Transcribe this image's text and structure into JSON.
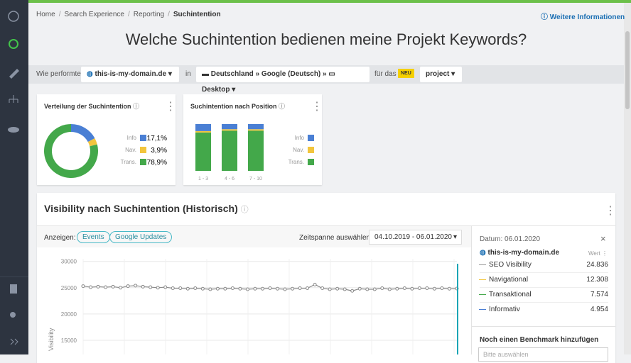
{
  "breadcrumb": [
    "Home",
    "Search Experience",
    "Reporting",
    "Suchintention"
  ],
  "info_link": "Weitere Informationen",
  "title": "Welche Suchintention bedienen meine Projekt Keywords?",
  "filter": {
    "prefix": "Wie performte",
    "domain": "this-is-my-domain.de",
    "in": "in",
    "country": "Deutschland",
    "engine": "Google (Deutsch)",
    "device": "Desktop",
    "for": "für das",
    "badge": "NEU",
    "project": "project"
  },
  "distribution": {
    "type": "pie",
    "title": "Verteilung der Suchintention",
    "categories": [
      "Info",
      "Nav.",
      "Trans."
    ],
    "values": [
      17.1,
      3.9,
      78.9
    ],
    "value_labels": [
      "17,1%",
      "3,9%",
      "78,9%"
    ],
    "colors": [
      "#4a7fd4",
      "#f2c53d",
      "#43a84a"
    ]
  },
  "position": {
    "type": "bar",
    "title": "Suchintention nach Position",
    "categories": [
      "1 - 3",
      "4 - 6",
      "7 - 10"
    ],
    "ylim": [
      0,
      100
    ],
    "series": [
      {
        "name": "Trans.",
        "color": "#43a84a",
        "values": [
          82,
          86,
          86
        ]
      },
      {
        "name": "Nav.",
        "color": "#f2c53d",
        "values": [
          3,
          3,
          3
        ]
      },
      {
        "name": "Info",
        "color": "#4a7fd4",
        "values": [
          15,
          11,
          11
        ]
      }
    ]
  },
  "visibility": {
    "title": "Visibility nach Suchintention (Historisch)",
    "show": "Anzeigen:",
    "buttons": [
      "Events",
      "Google Updates"
    ],
    "range_label": "Zeitspanne auswählen:",
    "range": "04.10.2019 - 06.01.2020",
    "chart": {
      "type": "line",
      "ylabel": "Visibility",
      "ylim": [
        12300,
        30500
      ],
      "yticks": [
        30000,
        25000,
        20000,
        15000
      ],
      "grid": true,
      "color": "#8a8a8a",
      "values": [
        25300,
        25100,
        25200,
        25100,
        25200,
        25000,
        25300,
        25400,
        25200,
        25100,
        25000,
        25100,
        24900,
        24900,
        24800,
        24900,
        24800,
        24700,
        24800,
        24800,
        24900,
        24800,
        24700,
        24800,
        24800,
        24900,
        24800,
        24700,
        24800,
        24900,
        24900,
        25600,
        24900,
        24700,
        24800,
        24700,
        24400,
        24800,
        24700,
        24700,
        24900,
        24700,
        24800,
        24900,
        24800,
        24900,
        24900,
        24800,
        24900,
        24800,
        24836
      ]
    }
  },
  "panel": {
    "date": "Datum: 06.01.2020",
    "domain": "this-is-my-domain.de",
    "col": "Wert",
    "rows": [
      {
        "name": "SEO Visibility",
        "value": "24.836",
        "color": "#999"
      },
      {
        "name": "Navigational",
        "value": "12.308",
        "color": "#f2c53d"
      },
      {
        "name": "Transaktional",
        "value": "7.574",
        "color": "#43a84a"
      },
      {
        "name": "Informativ",
        "value": "4.954",
        "color": "#4a7fd4"
      }
    ],
    "benchmark": "Noch einen Benchmark hinzufügen",
    "placeholder": "Bitte auswählen"
  }
}
